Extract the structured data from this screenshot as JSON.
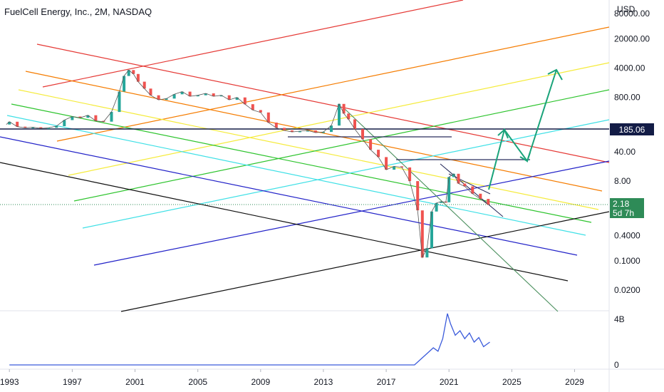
{
  "chart_data": {
    "type": "line",
    "title": "FuelCell Energy, Inc., 2M, NASDAQ",
    "price_scale_label": "USD",
    "price_scale": "log",
    "y_ticks": [
      "80000.00",
      "20000.00",
      "4000.00",
      "800.00",
      "185.06",
      "40.00",
      "8.00",
      "2.18",
      "0.4000",
      "0.1000",
      "0.0200"
    ],
    "x_ticks": [
      "1993",
      "1997",
      "2001",
      "2005",
      "2009",
      "2013",
      "2017",
      "2021",
      "2025",
      "2029"
    ],
    "x_range": [
      1992.4,
      2031.2
    ],
    "y_range_log": [
      0.0064,
      170000
    ],
    "price_labels": {
      "horizontal_level": "185.06",
      "last_price": "2.18",
      "countdown": "5d 7h"
    },
    "price_series": {
      "name": "",
      "years": [
        1992.8,
        1993.0,
        1993.5,
        1994.0,
        1994.5,
        1995.0,
        1995.5,
        1996.0,
        1996.5,
        1997.0,
        1997.5,
        1998.0,
        1998.5,
        1999.0,
        1999.5,
        2000.0,
        2000.3,
        2000.6,
        2000.9,
        2001.2,
        2001.6,
        2002.0,
        2002.5,
        2003.0,
        2003.5,
        2004.0,
        2004.5,
        2005.0,
        2005.5,
        2006.0,
        2006.5,
        2007.0,
        2007.5,
        2008.0,
        2008.5,
        2009.0,
        2009.5,
        2010.0,
        2010.5,
        2011.0,
        2011.5,
        2012.0,
        2012.5,
        2013.0,
        2013.5,
        2014.0,
        2014.3,
        2014.6,
        2015.0,
        2015.5,
        2016.0,
        2016.5,
        2017.0,
        2017.5,
        2018.0,
        2018.5,
        2019.0,
        2019.3,
        2019.6,
        2019.9,
        2020.2,
        2020.5,
        2020.8,
        2021.0,
        2021.3,
        2021.6,
        2022.0,
        2022.5,
        2023.0,
        2023.5
      ],
      "close": [
        180,
        210,
        160,
        150,
        155,
        145,
        150,
        165,
        230,
        280,
        260,
        300,
        220,
        210,
        360,
        1100,
        2600,
        3600,
        2900,
        1900,
        1300,
        900,
        700,
        750,
        950,
        1100,
        850,
        900,
        1000,
        850,
        900,
        700,
        800,
        550,
        400,
        350,
        200,
        150,
        130,
        120,
        125,
        130,
        115,
        120,
        170,
        560,
        330,
        240,
        140,
        80,
        45,
        30,
        15,
        18,
        17,
        8,
        1.6,
        0.12,
        0.2,
        1.5,
        2.4,
        2.6,
        2.5,
        10,
        12,
        7,
        6,
        4,
        3,
        2.18
      ]
    },
    "volume_series": {
      "name": "",
      "unit_label": "4B",
      "years": [
        1993,
        1997,
        2001,
        2005,
        2009,
        2013,
        2017,
        2018.8,
        2019.2,
        2019.6,
        2020.0,
        2020.3,
        2020.6,
        2020.9,
        2021.1,
        2021.4,
        2021.7,
        2022.0,
        2022.3,
        2022.6,
        2022.9,
        2023.2,
        2023.6
      ],
      "values": [
        0,
        0,
        0,
        0,
        0,
        0,
        0,
        0,
        0.5,
        1.0,
        1.5,
        1.2,
        2.3,
        4.5,
        3.6,
        2.6,
        3.0,
        2.3,
        2.8,
        2.0,
        2.4,
        1.6,
        2.0
      ],
      "ticks": [
        "4B",
        "0"
      ]
    },
    "drawings": {
      "red_channel": "#e53935",
      "orange_channel": "#f57c00",
      "yellow_channel": "#f5eb3b",
      "green_channel": "#2ec42e",
      "cyan_channel": "#3fe0e6",
      "blue_channel": "#2222c8",
      "black_channel": "#111111",
      "trend_green": "#4a8f5d",
      "navy_line": "#2a2e5e",
      "projection_arrow": "#1aa37a"
    },
    "colors": {
      "up_candle": "#26a69a",
      "down_candle": "#ef5350",
      "volume_line": "#3b5bdb",
      "level_tag": "#131c46",
      "last_price_tag": "#2e8b57"
    }
  }
}
